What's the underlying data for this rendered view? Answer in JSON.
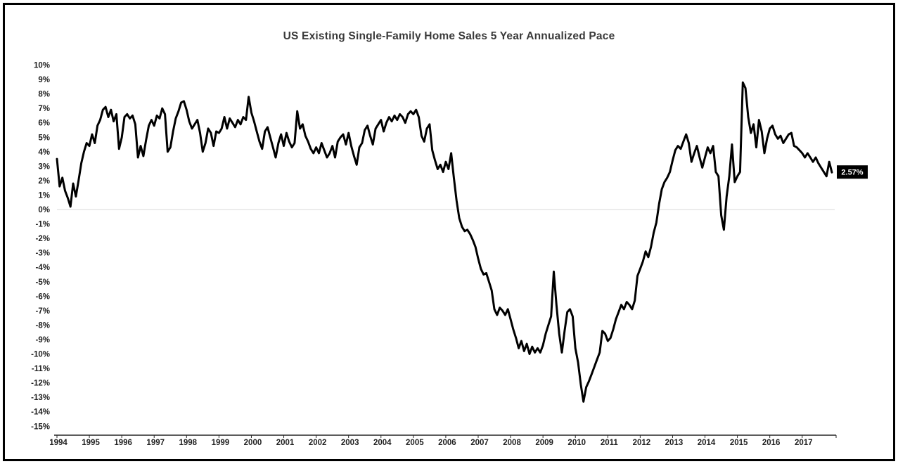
{
  "frame": {
    "border_color": "#000000",
    "background_color": "#ffffff"
  },
  "chart_data": {
    "type": "line",
    "title": "US Existing Single-Family Home Sales 5 Year Annualized Pace",
    "xlabel": "",
    "ylabel": "",
    "legend": "none",
    "grid": "zero-line-only",
    "line_color": "#000000",
    "line_width": 3,
    "zero_line_color": "#d9d9d9",
    "axis_color": "#262626",
    "label_color": "#1f1f1f",
    "y_axis": {
      "min": -15,
      "max": 10,
      "step": 1,
      "format": "percent"
    },
    "x_tick_labels": [
      "1994",
      "1995",
      "1996",
      "1997",
      "1998",
      "1999",
      "2000",
      "2001",
      "2002",
      "2003",
      "2004",
      "2005",
      "2006",
      "2007",
      "2008",
      "2009",
      "2010",
      "2011",
      "2012",
      "2013",
      "2014",
      "2015",
      "2016",
      "2017"
    ],
    "end_label": {
      "text": "2.57%",
      "bg": "#000000",
      "fg": "#ffffff"
    },
    "series": [
      {
        "name": "US Existing Single-Family Home Sales 5 Year Annualized Pace",
        "frequency": "monthly",
        "start": "1994-01",
        "end": "2017-12",
        "values_by_year": [
          [
            3.5,
            1.6,
            2.2,
            1.3,
            0.8,
            0.2,
            1.8,
            0.9,
            2.0,
            3.2,
            4.0,
            4.6
          ],
          [
            4.4,
            5.2,
            4.6,
            5.8,
            6.2,
            6.9,
            7.1,
            6.4,
            6.9,
            6.1,
            6.6,
            4.2
          ],
          [
            5.0,
            6.4,
            6.6,
            6.3,
            6.5,
            5.9,
            3.6,
            4.4,
            3.7,
            4.8,
            5.8,
            6.2
          ],
          [
            5.8,
            6.5,
            6.3,
            7.0,
            6.6,
            4.0,
            4.3,
            5.4,
            6.3,
            6.8,
            7.4,
            7.5
          ],
          [
            6.9,
            6.1,
            5.6,
            5.9,
            6.2,
            5.3,
            4.0,
            4.6,
            5.6,
            5.3,
            4.4,
            5.4
          ],
          [
            5.3,
            5.6,
            6.4,
            5.6,
            6.3,
            6.0,
            5.7,
            6.2,
            5.9,
            6.4,
            6.2,
            7.8
          ],
          [
            6.7,
            6.1,
            5.4,
            4.7,
            4.2,
            5.4,
            5.7,
            5.0,
            4.3,
            3.6,
            4.6,
            5.2
          ],
          [
            4.4,
            5.3,
            4.7,
            4.3,
            4.6,
            6.8,
            5.6,
            5.9,
            5.1,
            4.7,
            4.2,
            3.9
          ],
          [
            4.3,
            3.9,
            4.6,
            4.1,
            3.6,
            3.9,
            4.4,
            3.6,
            4.7,
            5.0,
            5.2,
            4.5
          ],
          [
            5.3,
            4.4,
            3.7,
            3.1,
            4.3,
            4.6,
            5.5,
            5.8,
            5.1,
            4.5,
            5.6,
            5.9
          ],
          [
            6.2,
            5.4,
            6.0,
            6.4,
            6.1,
            6.5,
            6.2,
            6.6,
            6.4,
            6.0,
            6.6,
            6.8
          ],
          [
            6.6,
            6.9,
            6.4,
            5.1,
            4.7,
            5.6,
            5.9,
            4.1,
            3.4,
            2.8,
            3.1,
            2.6
          ],
          [
            3.3,
            2.8,
            3.9,
            2.2,
            0.6,
            -0.6,
            -1.2,
            -1.5,
            -1.4,
            -1.7,
            -2.1,
            -2.6
          ],
          [
            -3.4,
            -4.1,
            -4.5,
            -4.4,
            -5.0,
            -5.6,
            -6.9,
            -7.3,
            -6.8,
            -7.0,
            -7.3,
            -6.9
          ],
          [
            -7.6,
            -8.3,
            -8.9,
            -9.6,
            -9.1,
            -9.8,
            -9.3,
            -10.0,
            -9.5,
            -9.9,
            -9.6,
            -9.9
          ],
          [
            -9.4,
            -8.6,
            -8.0,
            -7.4,
            -4.3,
            -6.6,
            -8.6,
            -9.9,
            -8.4,
            -7.1,
            -6.9,
            -7.4
          ],
          [
            -9.6,
            -10.6,
            -12.1,
            -13.3,
            -12.3,
            -11.9,
            -11.4,
            -10.9,
            -10.4,
            -9.9,
            -8.4,
            -8.6
          ],
          [
            -9.1,
            -8.9,
            -8.3,
            -7.6,
            -7.1,
            -6.6,
            -6.9,
            -6.4,
            -6.6,
            -6.9,
            -6.3,
            -4.6
          ],
          [
            -4.1,
            -3.6,
            -2.9,
            -3.3,
            -2.6,
            -1.6,
            -0.9,
            0.4,
            1.4,
            1.9,
            2.2,
            2.6
          ],
          [
            3.4,
            4.1,
            4.4,
            4.2,
            4.7,
            5.2,
            4.6,
            3.3,
            3.9,
            4.4,
            3.6,
            2.9
          ],
          [
            3.6,
            4.3,
            3.9,
            4.4,
            2.6,
            2.3,
            -0.4,
            -1.4,
            0.9,
            2.3,
            4.5,
            1.9
          ],
          [
            2.3,
            2.6,
            8.8,
            8.4,
            6.4,
            5.3,
            5.9,
            4.3,
            6.2,
            5.4,
            3.9,
            4.9
          ],
          [
            5.6,
            5.8,
            5.2,
            4.9,
            5.1,
            4.6,
            4.9,
            5.2,
            5.3,
            4.4,
            4.3,
            4.1
          ],
          [
            3.9,
            3.6,
            3.9,
            3.6,
            3.3,
            3.6,
            3.2,
            2.9,
            2.6,
            2.3,
            3.3,
            2.57
          ]
        ]
      }
    ]
  }
}
